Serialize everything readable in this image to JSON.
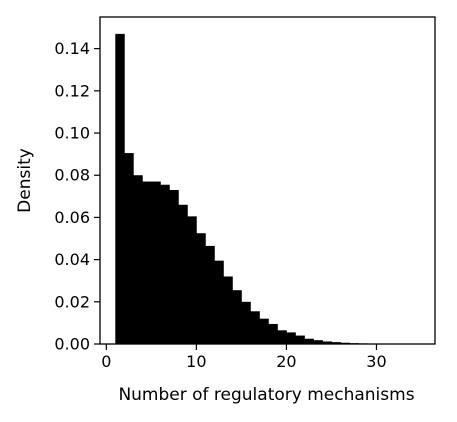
{
  "chart_data": {
    "type": "bar",
    "title": "",
    "xlabel": "Number of regulatory mechanisms",
    "ylabel": "Density",
    "xlim": [
      -0.7,
      36.5
    ],
    "ylim": [
      0,
      0.155
    ],
    "x_ticks": [
      0,
      10,
      20,
      30
    ],
    "x_tick_labels": [
      "0",
      "10",
      "20",
      "30"
    ],
    "y_ticks": [
      0.0,
      0.02,
      0.04,
      0.06,
      0.08,
      0.1,
      0.12,
      0.14
    ],
    "y_tick_labels": [
      "0.00",
      "0.02",
      "0.04",
      "0.06",
      "0.08",
      "0.10",
      "0.12",
      "0.14"
    ],
    "grid": false,
    "bar_color": "#000000",
    "bins": [
      {
        "x0": 1.0,
        "x1": 2.0,
        "value": 0.147
      },
      {
        "x0": 2.0,
        "x1": 3.0,
        "value": 0.0905
      },
      {
        "x0": 3.0,
        "x1": 4.0,
        "value": 0.08
      },
      {
        "x0": 4.0,
        "x1": 5.0,
        "value": 0.077
      },
      {
        "x0": 5.0,
        "x1": 6.0,
        "value": 0.077
      },
      {
        "x0": 6.0,
        "x1": 7.0,
        "value": 0.0755
      },
      {
        "x0": 7.0,
        "x1": 8.0,
        "value": 0.073
      },
      {
        "x0": 8.0,
        "x1": 9.0,
        "value": 0.066
      },
      {
        "x0": 9.0,
        "x1": 10.0,
        "value": 0.0605
      },
      {
        "x0": 10.0,
        "x1": 11.0,
        "value": 0.0525
      },
      {
        "x0": 11.0,
        "x1": 12.0,
        "value": 0.0465
      },
      {
        "x0": 12.0,
        "x1": 13.0,
        "value": 0.0395
      },
      {
        "x0": 13.0,
        "x1": 14.0,
        "value": 0.032
      },
      {
        "x0": 14.0,
        "x1": 15.0,
        "value": 0.0255
      },
      {
        "x0": 15.0,
        "x1": 16.0,
        "value": 0.02
      },
      {
        "x0": 16.0,
        "x1": 17.0,
        "value": 0.0155
      },
      {
        "x0": 17.0,
        "x1": 18.0,
        "value": 0.012
      },
      {
        "x0": 18.0,
        "x1": 19.0,
        "value": 0.0095
      },
      {
        "x0": 19.0,
        "x1": 20.0,
        "value": 0.0065
      },
      {
        "x0": 20.0,
        "x1": 21.0,
        "value": 0.0055
      },
      {
        "x0": 21.0,
        "x1": 22.0,
        "value": 0.004
      },
      {
        "x0": 22.0,
        "x1": 23.0,
        "value": 0.0025
      },
      {
        "x0": 23.0,
        "x1": 24.0,
        "value": 0.0018
      },
      {
        "x0": 24.0,
        "x1": 25.0,
        "value": 0.0012
      },
      {
        "x0": 25.0,
        "x1": 26.0,
        "value": 0.0009
      },
      {
        "x0": 26.0,
        "x1": 27.0,
        "value": 0.0006
      },
      {
        "x0": 27.0,
        "x1": 28.0,
        "value": 0.0004
      },
      {
        "x0": 28.0,
        "x1": 29.0,
        "value": 0.0003
      },
      {
        "x0": 29.0,
        "x1": 30.0,
        "value": 0.0002
      },
      {
        "x0": 30.0,
        "x1": 31.0,
        "value": 0.00015
      },
      {
        "x0": 31.0,
        "x1": 32.0,
        "value": 0.0001
      },
      {
        "x0": 32.0,
        "x1": 33.0,
        "value": 8e-05
      },
      {
        "x0": 33.0,
        "x1": 34.0,
        "value": 5e-05
      },
      {
        "x0": 34.0,
        "x1": 35.0,
        "value": 3e-05
      }
    ]
  }
}
